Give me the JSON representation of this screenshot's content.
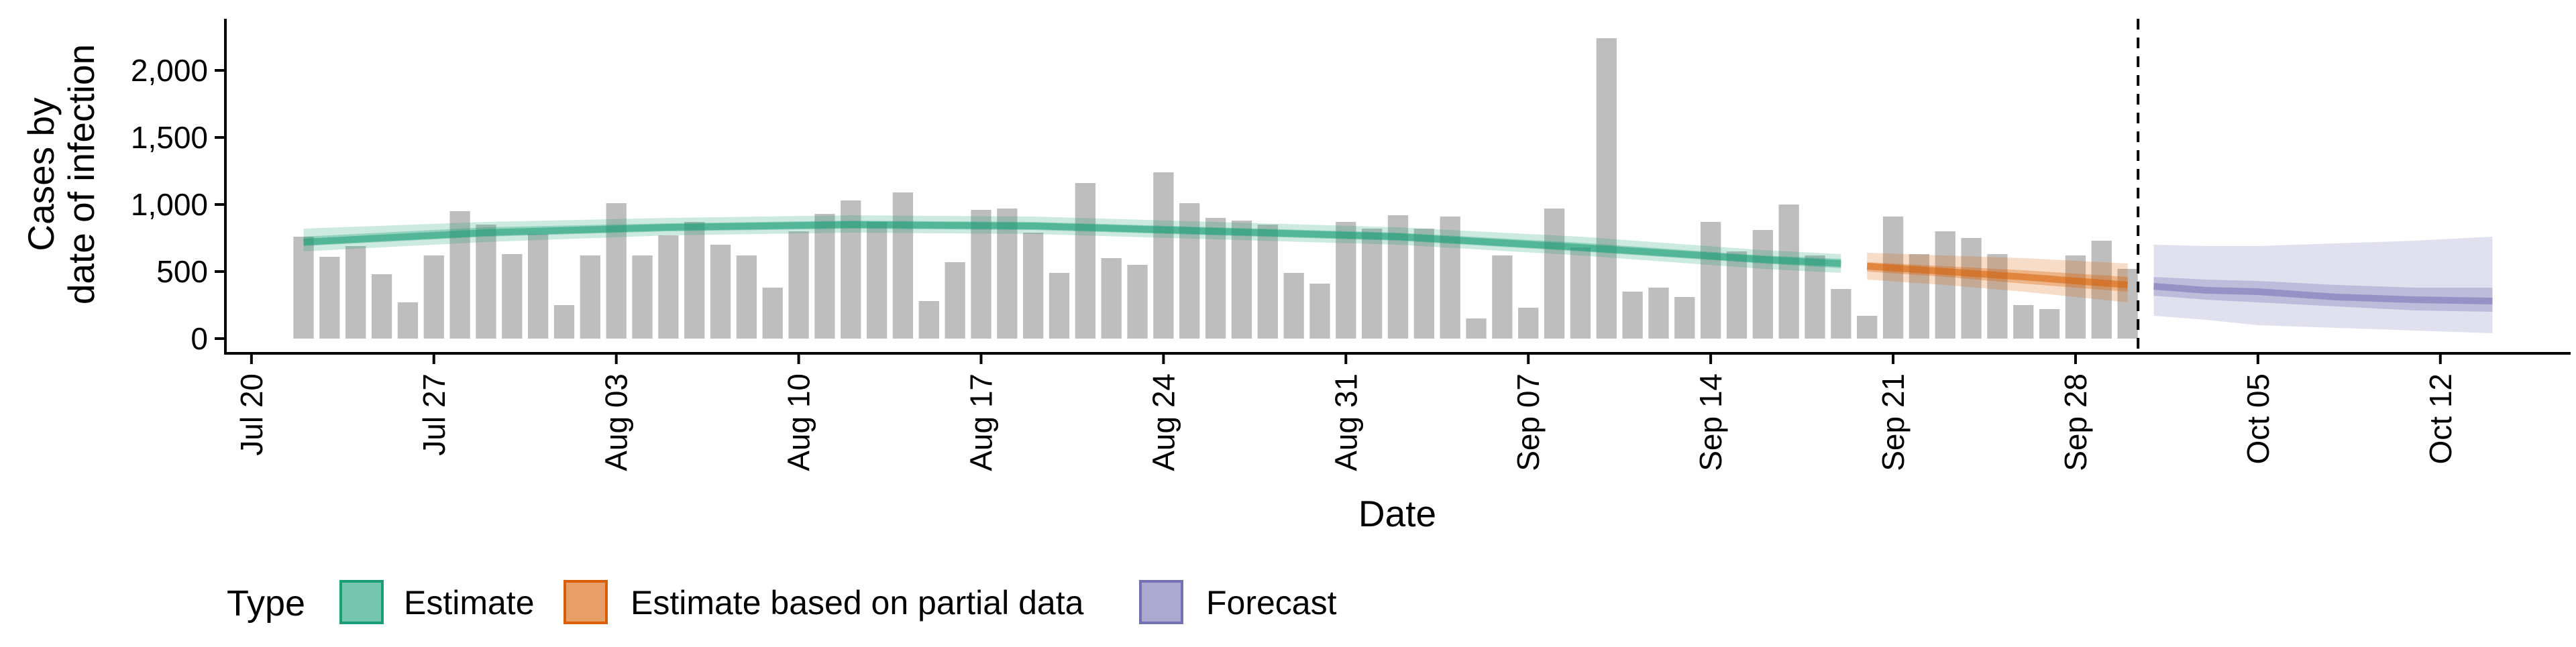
{
  "chart_data": {
    "type": "bar",
    "title": "",
    "xlabel": "Date",
    "ylabel": [
      "Cases by",
      "date of infection"
    ],
    "x_tick_labels": [
      "Jul 20",
      "Jul 27",
      "Aug 03",
      "Aug 10",
      "Aug 17",
      "Aug 24",
      "Aug 31",
      "Sep 07",
      "Sep 14",
      "Sep 21",
      "Sep 28",
      "Oct 05",
      "Oct 12"
    ],
    "y_tick_labels": [
      "0",
      "500",
      "1,000",
      "1,500",
      "2,000"
    ],
    "ylim": [
      0,
      2350
    ],
    "xlim": [
      "2020-07-19",
      "2020-10-17"
    ],
    "grid": false,
    "legend_position": "bottom",
    "legend_title": "Type",
    "legend_items": [
      {
        "label": "Estimate",
        "color": "#1b9e77"
      },
      {
        "label": "Estimate based on partial data",
        "color": "#d95f02"
      },
      {
        "label": "Forecast",
        "color": "#7570b3"
      }
    ],
    "bar_color": "#bebebe",
    "forecast_start_date": "2020-09-30",
    "reported_cases": {
      "dates": [
        "2020-07-22",
        "2020-07-23",
        "2020-07-24",
        "2020-07-25",
        "2020-07-26",
        "2020-07-27",
        "2020-07-28",
        "2020-07-29",
        "2020-07-30",
        "2020-07-31",
        "2020-08-01",
        "2020-08-02",
        "2020-08-03",
        "2020-08-04",
        "2020-08-05",
        "2020-08-06",
        "2020-08-07",
        "2020-08-08",
        "2020-08-09",
        "2020-08-10",
        "2020-08-11",
        "2020-08-12",
        "2020-08-13",
        "2020-08-14",
        "2020-08-15",
        "2020-08-16",
        "2020-08-17",
        "2020-08-18",
        "2020-08-19",
        "2020-08-20",
        "2020-08-21",
        "2020-08-22",
        "2020-08-23",
        "2020-08-24",
        "2020-08-25",
        "2020-08-26",
        "2020-08-27",
        "2020-08-28",
        "2020-08-29",
        "2020-08-30",
        "2020-08-31",
        "2020-09-01",
        "2020-09-02",
        "2020-09-03",
        "2020-09-04",
        "2020-09-05",
        "2020-09-06",
        "2020-09-07",
        "2020-09-08",
        "2020-09-09",
        "2020-09-10",
        "2020-09-11",
        "2020-09-12",
        "2020-09-13",
        "2020-09-14",
        "2020-09-15",
        "2020-09-16",
        "2020-09-17",
        "2020-09-18",
        "2020-09-19",
        "2020-09-20",
        "2020-09-21",
        "2020-09-22",
        "2020-09-23",
        "2020-09-24",
        "2020-09-25",
        "2020-09-26",
        "2020-09-27",
        "2020-09-28",
        "2020-09-29",
        "2020-09-30"
      ],
      "values": [
        760,
        610,
        690,
        480,
        270,
        620,
        950,
        850,
        630,
        780,
        250,
        620,
        1010,
        620,
        770,
        870,
        700,
        620,
        380,
        800,
        930,
        1030,
        870,
        1090,
        280,
        570,
        960,
        970,
        790,
        490,
        1160,
        600,
        550,
        1240,
        1010,
        900,
        880,
        850,
        490,
        410,
        870,
        820,
        920,
        820,
        910,
        150,
        620,
        230,
        970,
        680,
        2240,
        350,
        380,
        310,
        870,
        650,
        810,
        1000,
        620,
        370,
        170,
        910,
        630,
        800,
        750,
        630,
        250,
        220,
        620,
        730,
        520
      ]
    },
    "series": [
      {
        "name": "Estimate",
        "color": "#1b9e77",
        "dates": [
          "2020-07-22",
          "2020-07-29",
          "2020-08-05",
          "2020-08-12",
          "2020-08-19",
          "2020-08-26",
          "2020-09-02",
          "2020-09-09",
          "2020-09-16",
          "2020-09-19"
        ],
        "median": [
          720,
          790,
          830,
          850,
          840,
          800,
          760,
          680,
          590,
          560
        ],
        "inner_lower": [
          690,
          760,
          800,
          820,
          810,
          770,
          730,
          650,
          560,
          525
        ],
        "inner_upper": [
          760,
          830,
          860,
          880,
          870,
          830,
          790,
          715,
          620,
          595
        ],
        "outer_lower": [
          650,
          720,
          770,
          790,
          780,
          740,
          700,
          620,
          520,
          490
        ],
        "outer_upper": [
          820,
          870,
          900,
          920,
          910,
          870,
          830,
          760,
          660,
          630
        ]
      },
      {
        "name": "Estimate based on partial data",
        "color": "#d95f02",
        "dates": [
          "2020-09-20",
          "2020-09-23",
          "2020-09-26",
          "2020-09-30"
        ],
        "median": [
          540,
          500,
          460,
          400
        ],
        "inner_lower": [
          500,
          460,
          410,
          350
        ],
        "inner_upper": [
          570,
          540,
          510,
          460
        ],
        "outer_lower": [
          440,
          400,
          350,
          270
        ],
        "outer_upper": [
          640,
          620,
          600,
          560
        ]
      },
      {
        "name": "Forecast",
        "color": "#7570b3",
        "dates": [
          "2020-10-01",
          "2020-10-03",
          "2020-10-05",
          "2020-10-08",
          "2020-10-11",
          "2020-10-14"
        ],
        "median": [
          390,
          360,
          350,
          310,
          290,
          280
        ],
        "inner_lower": [
          320,
          290,
          270,
          240,
          210,
          200
        ],
        "inner_upper": [
          460,
          440,
          430,
          400,
          380,
          380
        ],
        "outer_lower": [
          170,
          140,
          100,
          80,
          60,
          40
        ],
        "outer_upper": [
          700,
          690,
          690,
          710,
          730,
          760
        ]
      }
    ]
  }
}
